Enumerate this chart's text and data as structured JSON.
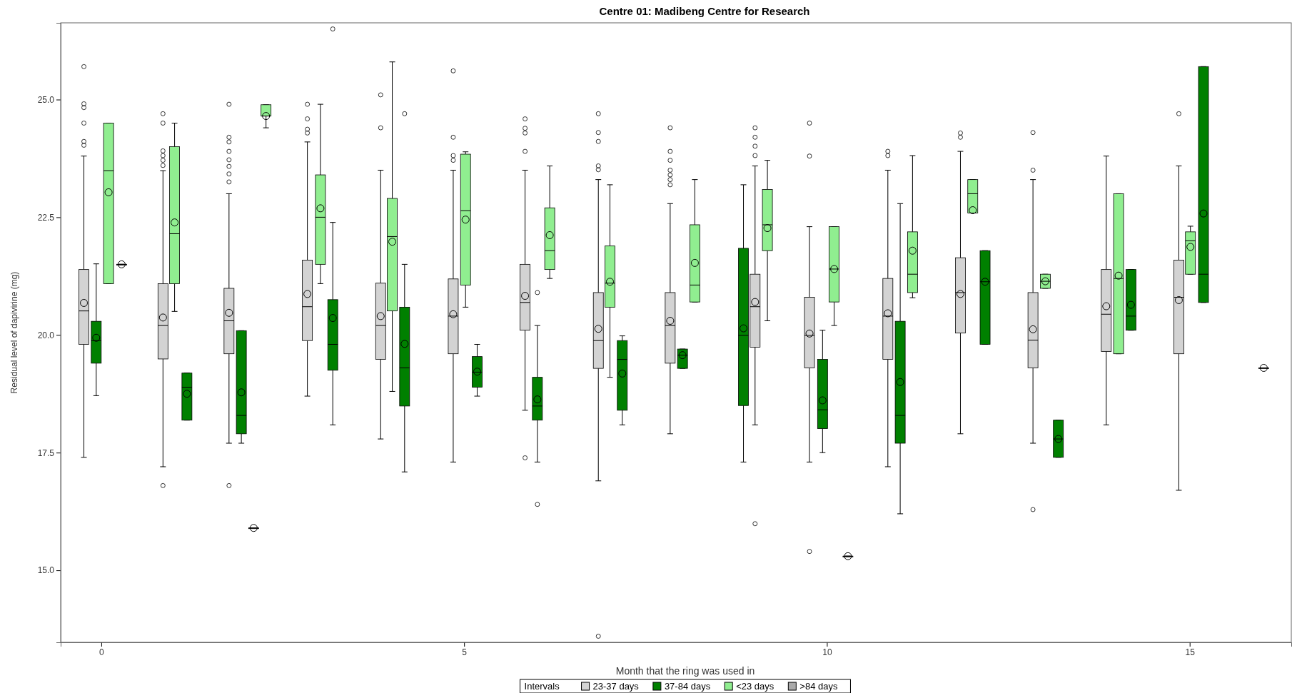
{
  "chart_data": {
    "type": "box",
    "title": "Centre 01: Madibeng Centre for Research",
    "xlabel": "Month that the ring was used in",
    "ylabel": "Residual level of dapivirine (mg)",
    "legend_title": "Intervals",
    "legend": "bottom",
    "xlim": [
      -0.56,
      16.4
    ],
    "xticks": [
      0,
      5,
      10,
      15
    ],
    "ylim": [
      13.47,
      26.63
    ],
    "yticks": [
      {
        "value": 15,
        "label": "15.0"
      },
      {
        "value": 17.5,
        "label": "17.5"
      },
      {
        "value": 20,
        "label": "20.0"
      },
      {
        "value": 22.5,
        "label": "22.5"
      },
      {
        "value": 25,
        "label": "25.0"
      }
    ],
    "series": [
      {
        "name": "23-37 days",
        "color": "#d3d3d3",
        "x": [
          -0.24,
          0.85,
          1.76,
          2.84,
          3.85,
          4.85,
          5.84,
          6.85,
          7.84,
          9.01,
          9.76,
          10.84,
          11.84,
          12.84,
          13.85,
          14.85
        ],
        "boxes": [
          {
            "low": 17.4,
            "q1": 19.8,
            "median": 20.51,
            "q3": 21.39,
            "high": 23.8,
            "mean": 20.68,
            "outliers": [
              25.7,
              24.91,
              24.83,
              24.5,
              24.11,
              24.03
            ]
          },
          {
            "low": 17.2,
            "q1": 19.49,
            "median": 20.2,
            "q3": 21.09,
            "high": 23.49,
            "mean": 20.37,
            "outliers": [
              24.7,
              24.5,
              23.91,
              23.81,
              23.71,
              23.6,
              16.8
            ]
          },
          {
            "low": 17.7,
            "q1": 19.6,
            "median": 20.3,
            "q3": 20.99,
            "high": 23.0,
            "mean": 20.47,
            "outliers": [
              24.9,
              24.2,
              24.1,
              23.9,
              23.72,
              23.58,
              23.42,
              23.25,
              16.8
            ]
          },
          {
            "low": 18.7,
            "q1": 19.88,
            "median": 20.6,
            "q3": 21.59,
            "high": 24.1,
            "mean": 20.87,
            "outliers": [
              24.9,
              24.59,
              24.37,
              24.29
            ]
          },
          {
            "low": 17.79,
            "q1": 19.48,
            "median": 20.2,
            "q3": 21.1,
            "high": 23.5,
            "mean": 20.4,
            "outliers": [
              25.1,
              24.4
            ]
          },
          {
            "low": 17.3,
            "q1": 19.6,
            "median": 20.4,
            "q3": 21.19,
            "high": 23.5,
            "mean": 20.44,
            "outliers": [
              25.61,
              24.2,
              23.81,
              23.71
            ]
          },
          {
            "low": 18.4,
            "q1": 20.1,
            "median": 20.69,
            "q3": 21.5,
            "high": 23.5,
            "mean": 20.83,
            "outliers": [
              24.59,
              24.39,
              24.29,
              23.9,
              17.39
            ]
          },
          {
            "low": 16.9,
            "q1": 19.29,
            "median": 19.88,
            "q3": 20.9,
            "high": 23.3,
            "mean": 20.13,
            "outliers": [
              24.7,
              24.3,
              24.11,
              23.59,
              23.51,
              13.6
            ]
          },
          {
            "low": 17.9,
            "q1": 19.4,
            "median": 20.2,
            "q3": 20.9,
            "high": 22.79,
            "mean": 20.3,
            "outliers": [
              24.4,
              23.9,
              23.71,
              23.5,
              23.4,
              23.3,
              23.19
            ]
          },
          {
            "low": 18.09,
            "q1": 19.74,
            "median": 20.6,
            "q3": 21.29,
            "high": 23.59,
            "mean": 20.7,
            "outliers": [
              24.4,
              24.2,
              24.01,
              23.81,
              15.99
            ]
          },
          {
            "low": 17.3,
            "q1": 19.3,
            "median": 19.99,
            "q3": 20.8,
            "high": 22.3,
            "mean": 20.03,
            "outliers": [
              24.5,
              23.8,
              15.4
            ]
          },
          {
            "low": 17.2,
            "q1": 19.48,
            "median": 20.4,
            "q3": 21.2,
            "high": 23.5,
            "mean": 20.46,
            "outliers": [
              23.9,
              23.81
            ]
          },
          {
            "low": 17.9,
            "q1": 20.04,
            "median": 20.9,
            "q3": 21.64,
            "high": 23.9,
            "mean": 20.87,
            "outliers": [
              24.29,
              24.2
            ]
          },
          {
            "low": 17.7,
            "q1": 19.3,
            "median": 19.89,
            "q3": 20.9,
            "high": 23.3,
            "mean": 20.12,
            "outliers": [
              24.3,
              23.5,
              16.29
            ]
          },
          {
            "low": 18.09,
            "q1": 19.65,
            "median": 20.44,
            "q3": 21.39,
            "high": 23.8,
            "mean": 20.61
          },
          {
            "low": 16.7,
            "q1": 19.6,
            "median": 20.8,
            "q3": 21.59,
            "high": 23.59,
            "mean": 20.74,
            "outliers": [
              24.7
            ]
          }
        ]
      },
      {
        "name": "37-84 days",
        "color": "#008000",
        "x": [
          -0.07,
          1.18,
          1.93,
          3.19,
          4.18,
          5.18,
          6.01,
          7.18,
          8.01,
          8.85,
          9.94,
          11.01,
          12.18,
          13.19,
          14.19,
          15.19
        ],
        "boxes": [
          {
            "low": 18.71,
            "q1": 19.4,
            "median": 19.88,
            "q3": 20.29,
            "high": 21.51,
            "mean": 19.94
          },
          {
            "low": 18.19,
            "q1": 18.19,
            "median": 18.89,
            "q3": 19.19,
            "high": 19.19,
            "mean": 18.75
          },
          {
            "low": 17.7,
            "q1": 17.9,
            "median": 18.29,
            "q3": 20.09,
            "high": 20.09,
            "mean": 18.78
          },
          {
            "low": 18.09,
            "q1": 19.25,
            "median": 19.8,
            "q3": 20.75,
            "high": 22.39,
            "mean": 20.36,
            "outliers": [
              26.5
            ]
          },
          {
            "low": 17.09,
            "q1": 18.49,
            "median": 19.3,
            "q3": 20.59,
            "high": 21.5,
            "mean": 19.81,
            "outliers": [
              24.7
            ]
          },
          {
            "low": 18.7,
            "q1": 18.89,
            "median": 19.21,
            "q3": 19.54,
            "high": 19.8,
            "mean": 19.22
          },
          {
            "low": 17.3,
            "q1": 18.19,
            "median": 18.49,
            "q3": 19.1,
            "high": 20.2,
            "mean": 18.63,
            "outliers": [
              20.9,
              16.4
            ]
          },
          {
            "low": 18.09,
            "q1": 18.4,
            "median": 19.48,
            "q3": 19.88,
            "high": 19.98,
            "mean": 19.18
          },
          {
            "low": 19.29,
            "q1": 19.29,
            "median": 19.57,
            "q3": 19.7,
            "high": 19.7,
            "mean": 19.57
          },
          {
            "low": 17.3,
            "q1": 18.5,
            "median": 19.99,
            "q3": 21.84,
            "high": 23.19,
            "mean": 20.14
          },
          {
            "low": 17.5,
            "q1": 18.01,
            "median": 18.41,
            "q3": 19.48,
            "high": 20.1,
            "mean": 18.61
          },
          {
            "low": 16.2,
            "q1": 17.7,
            "median": 18.29,
            "q3": 20.29,
            "high": 22.79,
            "mean": 19.0
          },
          {
            "low": 19.8,
            "q1": 19.8,
            "median": 21.13,
            "q3": 21.79,
            "high": 21.79,
            "mean": 21.13
          },
          {
            "low": 17.4,
            "q1": 17.4,
            "median": 17.79,
            "q3": 18.19,
            "high": 18.19,
            "mean": 17.79
          },
          {
            "low": 20.1,
            "q1": 20.1,
            "median": 20.4,
            "q3": 21.39,
            "high": 21.39,
            "mean": 20.64
          },
          {
            "low": 20.69,
            "q1": 20.69,
            "median": 21.29,
            "q3": 25.7,
            "high": 25.7,
            "mean": 22.58
          }
        ]
      },
      {
        "name": "<23 days",
        "color": "#90ee90",
        "x": [
          0.1,
          1.01,
          2.27,
          3.02,
          4.01,
          5.02,
          6.18,
          7.01,
          8.18,
          9.18,
          10.1,
          11.18,
          12.01,
          13.01,
          14.02,
          15.01
        ],
        "boxes": [
          {
            "low": 21.09,
            "q1": 21.09,
            "median": 23.49,
            "q3": 24.5,
            "high": 24.5,
            "mean": 23.03
          },
          {
            "low": 20.5,
            "q1": 21.09,
            "median": 22.15,
            "q3": 24.0,
            "high": 24.5,
            "mean": 22.39
          },
          {
            "low": 24.4,
            "q1": 24.65,
            "median": 24.65,
            "q3": 24.89,
            "high": 24.89,
            "mean": 24.65
          },
          {
            "low": 21.09,
            "q1": 21.5,
            "median": 22.5,
            "q3": 23.4,
            "high": 24.9,
            "mean": 22.69
          },
          {
            "low": 18.8,
            "q1": 20.51,
            "median": 22.09,
            "q3": 22.9,
            "high": 25.8,
            "mean": 21.98
          },
          {
            "low": 20.59,
            "q1": 21.06,
            "median": 22.64,
            "q3": 23.84,
            "high": 23.89,
            "mean": 22.45
          },
          {
            "low": 21.2,
            "q1": 21.39,
            "median": 21.79,
            "q3": 22.7,
            "high": 23.59,
            "mean": 22.12
          },
          {
            "low": 19.1,
            "q1": 20.59,
            "median": 21.1,
            "q3": 21.89,
            "high": 23.19,
            "mean": 21.13
          },
          {
            "low": 20.7,
            "q1": 20.7,
            "median": 21.06,
            "q3": 22.34,
            "high": 23.3,
            "mean": 21.53
          },
          {
            "low": 20.3,
            "q1": 21.79,
            "median": 22.34,
            "q3": 23.09,
            "high": 23.71,
            "mean": 22.27
          },
          {
            "low": 20.2,
            "q1": 20.7,
            "median": 21.4,
            "q3": 22.3,
            "high": 22.3,
            "mean": 21.4
          },
          {
            "low": 20.79,
            "q1": 20.9,
            "median": 21.29,
            "q3": 22.19,
            "high": 23.81,
            "mean": 21.79
          },
          {
            "low": 22.59,
            "q1": 22.59,
            "median": 23.0,
            "q3": 23.3,
            "high": 23.3,
            "mean": 22.65
          },
          {
            "low": 20.99,
            "q1": 20.99,
            "median": 21.14,
            "q3": 21.29,
            "high": 21.29,
            "mean": 21.14
          },
          {
            "low": 19.6,
            "q1": 19.6,
            "median": 21.2,
            "q3": 23.0,
            "high": 23.0,
            "mean": 21.26
          },
          {
            "low": 21.29,
            "q1": 21.29,
            "median": 22.0,
            "q3": 22.19,
            "high": 22.31,
            "mean": 21.87
          }
        ]
      },
      {
        "name": ">84 days",
        "color": "#a9a9a9",
        "x": [
          0.28,
          2.1,
          10.29,
          16.02
        ],
        "boxes": [
          {
            "low": 21.5,
            "q1": 21.5,
            "median": 21.5,
            "q3": 21.5,
            "high": 21.5,
            "mean": 21.5
          },
          {
            "low": 15.9,
            "q1": 15.9,
            "median": 15.9,
            "q3": 15.9,
            "high": 15.9,
            "mean": 15.9
          },
          {
            "low": 15.3,
            "q1": 15.3,
            "median": 15.3,
            "q3": 15.3,
            "high": 15.3,
            "mean": 15.3
          },
          {
            "low": 19.3,
            "q1": 19.3,
            "median": 19.3,
            "q3": 19.3,
            "high": 19.3,
            "mean": 19.3
          }
        ]
      }
    ]
  }
}
